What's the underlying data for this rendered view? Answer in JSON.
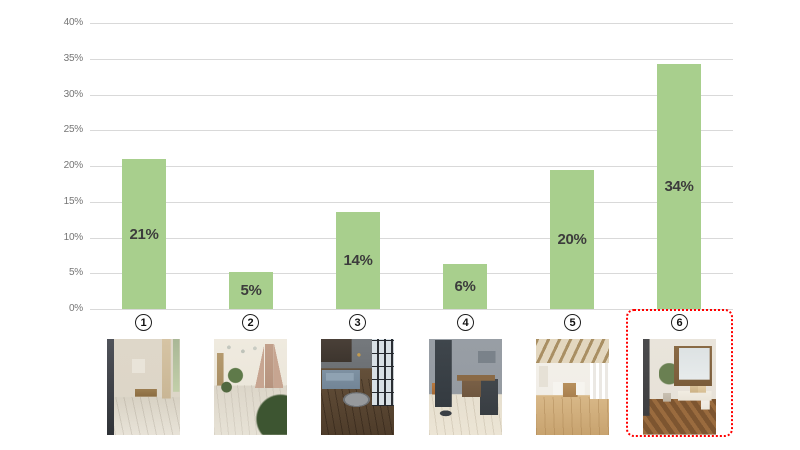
{
  "page": {
    "background": "#ffffff"
  },
  "chart_data": {
    "type": "bar",
    "title": "",
    "xlabel": "",
    "ylabel": "",
    "categories": [
      "1",
      "2",
      "3",
      "4",
      "5",
      "6"
    ],
    "values": [
      21,
      5,
      14,
      6,
      20,
      34
    ],
    "labels": [
      "21%",
      "5%",
      "14%",
      "6%",
      "20%",
      "34%"
    ],
    "bar_heights_pct": [
      21.0,
      5.2,
      13.5,
      6.3,
      19.5,
      34.3
    ],
    "ylim": [
      0,
      40
    ],
    "ytick_step": 5,
    "yticks": [
      "0%",
      "5%",
      "10%",
      "15%",
      "20%",
      "25%",
      "30%",
      "35%",
      "40%"
    ],
    "grid": true,
    "legend": false,
    "bar_color": "#a8cf8d",
    "label_color": "#3c3c3c",
    "axis_text_color": "#757575",
    "gridline_color": "#d9d9d9",
    "highlight": {
      "category_index": 5,
      "border_color": "#ff0000",
      "border_style": "dotted"
    }
  },
  "photos": [
    {
      "description": "Bright beige dining room with glass partition and pale wood floor"
    },
    {
      "description": "Kids playroom with canopy tent, bunting flags and pale wood floor"
    },
    {
      "description": "Dark loft living room with blue sofa, oval table and dark brown wood floor"
    },
    {
      "description": "Home office nook with dark shelving, wooden desk and light wood floor"
    },
    {
      "description": "Sunlit dining room with wood-beam ceiling, white chairs and oak floor"
    },
    {
      "description": "Window-seat nook with potted plant and herringbone brown wood floor"
    }
  ]
}
